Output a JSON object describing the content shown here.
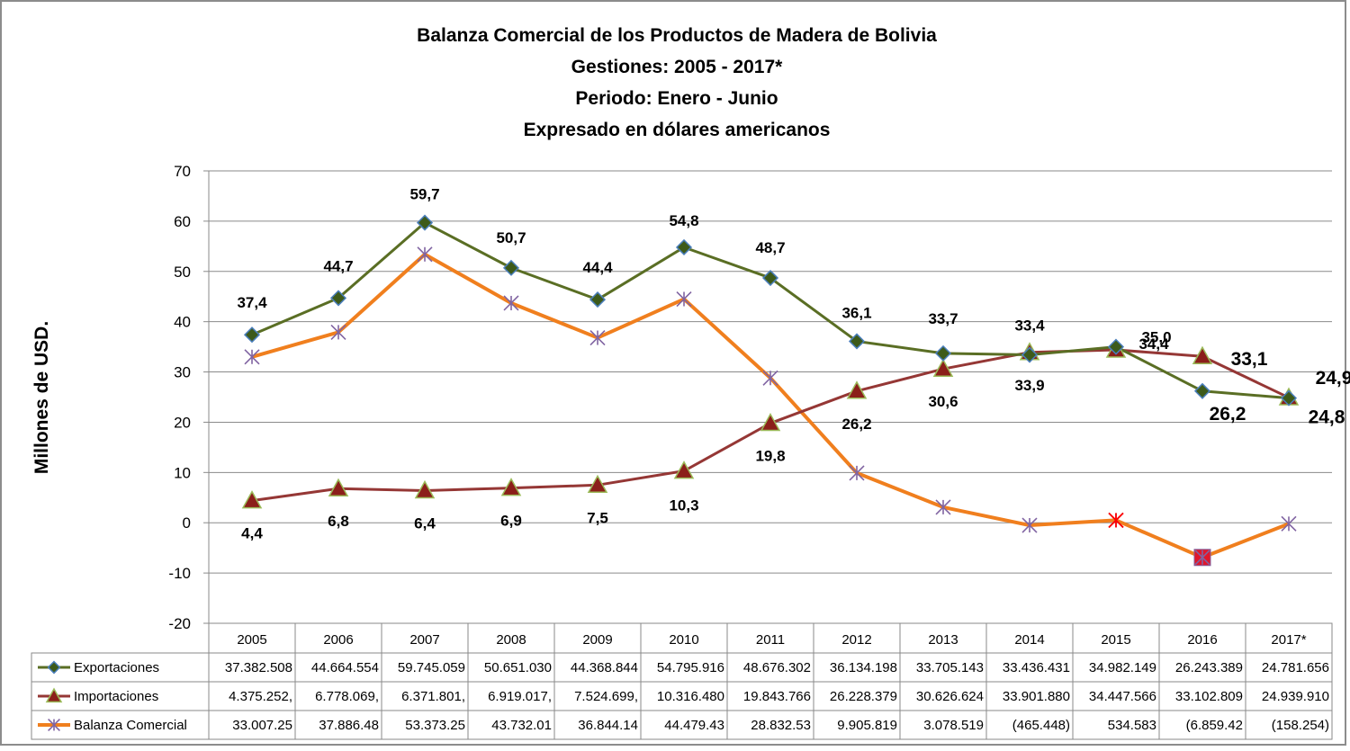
{
  "chart_data": {
    "type": "line",
    "title": [
      "Balanza Comercial de los Productos de Madera de Bolivia",
      "Gestiones: 2005 - 2017*",
      "Periodo: Enero - Junio",
      "Expresado en dólares americanos"
    ],
    "ylabel": "Millones de USD.",
    "ylim": [
      -20,
      70
    ],
    "yticks": [
      "-20",
      "-10",
      "0",
      "10",
      "20",
      "30",
      "40",
      "50",
      "60",
      "70"
    ],
    "categories": [
      "2005",
      "2006",
      "2007",
      "2008",
      "2009",
      "2010",
      "2011",
      "2012",
      "2013",
      "2014",
      "2015",
      "2016",
      "2017*"
    ],
    "grid": "horizontal",
    "legend": "data-table-left",
    "series": [
      {
        "name": "Exportaciones",
        "color": "#5a6e24",
        "marker": "diamond",
        "marker_fill": "#3d5a1a",
        "values": [
          37.4,
          44.7,
          59.7,
          50.7,
          44.4,
          54.8,
          48.7,
          36.1,
          33.7,
          33.4,
          35.0,
          26.2,
          24.8
        ],
        "labels": [
          "37,4",
          "44,7",
          "59,7",
          "50,7",
          "44,4",
          "54,8",
          "48,7",
          "36,1",
          "33,7",
          "33,4",
          "35,0",
          "26,2",
          "24,8"
        ],
        "table": [
          "37.382.508",
          "44.664.554",
          "59.745.059",
          "50.651.030",
          "44.368.844",
          "54.795.916",
          "48.676.302",
          "36.134.198",
          "33.705.143",
          "33.436.431",
          "34.982.149",
          "26.243.389",
          "24.781.656"
        ]
      },
      {
        "name": "Importaciones",
        "color": "#953735",
        "marker": "triangle",
        "marker_fill": "#8b1f1a",
        "values": [
          4.4,
          6.8,
          6.4,
          6.9,
          7.5,
          10.3,
          19.8,
          26.2,
          30.6,
          33.9,
          34.4,
          33.1,
          24.9
        ],
        "labels": [
          "4,4",
          "6,8",
          "6,4",
          "6,9",
          "7,5",
          "10,3",
          "19,8",
          "26,2",
          "30,6",
          "33,9",
          "34,4",
          "33,1",
          "24,9"
        ],
        "table": [
          "4.375.252,",
          "6.778.069,",
          "6.371.801,",
          "6.919.017,",
          "7.524.699,",
          "10.316.480",
          "19.843.766",
          "26.228.379",
          "30.626.624",
          "33.901.880",
          "34.447.566",
          "33.102.809",
          "24.939.910"
        ]
      },
      {
        "name": "Balanza Comercial",
        "color": "#f07f1e",
        "marker": "asterisk",
        "marker_color": "#8064a2",
        "values": [
          33.0,
          37.9,
          53.4,
          43.7,
          36.8,
          44.5,
          28.8,
          9.9,
          3.1,
          -0.5,
          0.5,
          -6.9,
          -0.2
        ],
        "table": [
          "33.007.25",
          "37.886.48",
          "53.373.25",
          "43.732.01",
          "36.844.14",
          "44.479.43",
          "28.832.53",
          "9.905.819",
          "3.078.519",
          "(465.448)",
          "534.583",
          "(6.859.42",
          "(158.254)"
        ]
      }
    ]
  }
}
